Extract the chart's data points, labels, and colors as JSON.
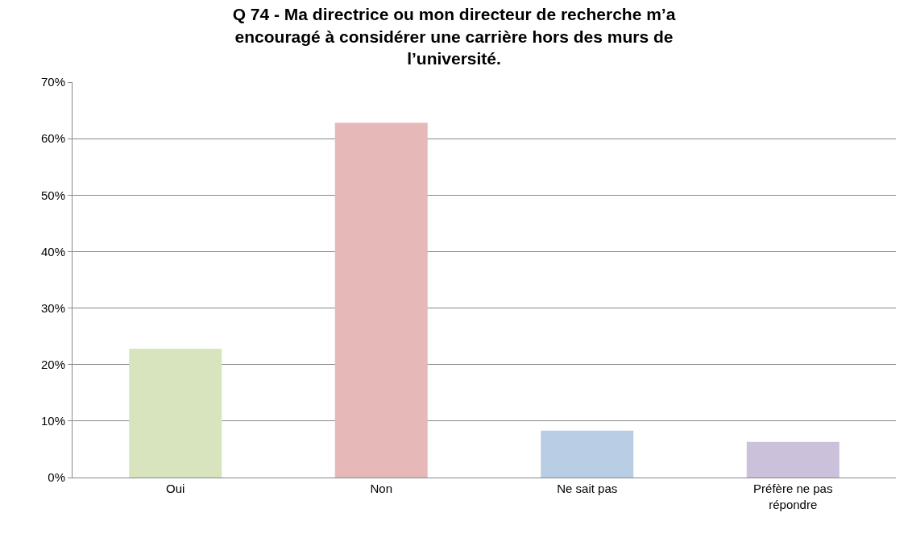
{
  "chart_data": {
    "type": "bar",
    "title": "Q 74 - Ma directrice ou mon directeur de recherche m’a\nencouragé à considérer une carrière hors des murs de\nl’université.",
    "categories": [
      "Oui",
      "Non",
      "Ne sait pas",
      "Préfère ne pas répondre"
    ],
    "values": [
      22.8,
      62.8,
      8.3,
      6.3
    ],
    "colors": [
      "#d7e4bd",
      "#e6b9b8",
      "#b9cde5",
      "#ccc1da"
    ],
    "ylim": [
      0,
      70
    ],
    "yticks": [
      {
        "value": 0,
        "label": "0%"
      },
      {
        "value": 10,
        "label": "10%"
      },
      {
        "value": 20,
        "label": "20%"
      },
      {
        "value": 30,
        "label": "30%"
      },
      {
        "value": 40,
        "label": "40%"
      },
      {
        "value": 50,
        "label": "50%"
      },
      {
        "value": 60,
        "label": "60%"
      },
      {
        "value": 70,
        "label": "70%"
      }
    ],
    "grid": "y"
  }
}
